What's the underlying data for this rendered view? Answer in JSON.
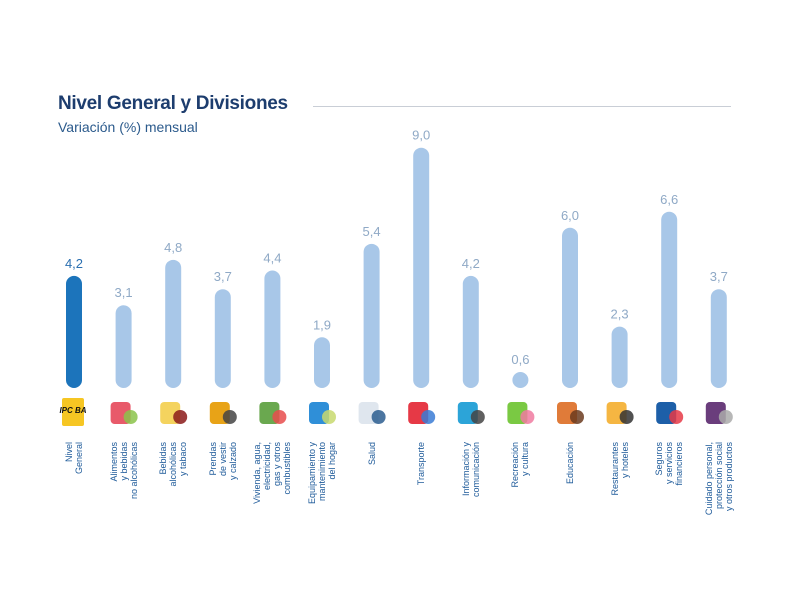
{
  "chart_data": {
    "type": "bar",
    "title": "Nivel General y Divisiones",
    "subtitle": "Variación (%) mensual",
    "xlabel": "",
    "ylabel": "",
    "ylim": [
      0,
      9.5
    ],
    "categories": [
      "Nivel\nGeneral",
      "Alimentos\ny bebidas\nno alcohólicas",
      "Bebidas\nalcohólicas\ny tabaco",
      "Prendas\nde vestir\ny calzado",
      "Vivienda, agua,\nelectricidad,\ngas y otros\ncombustibles",
      "Equipamiento y\nmantenimiento\ndel hogar",
      "Salud",
      "Transporte",
      "Información y\ncomunicación",
      "Recreación\ny cultura",
      "Educación",
      "Restaurantes\ny hoteles",
      "Seguros\ny servicios\nfinancieros",
      "Cuidado personal,\nprotección social\ny otros productos"
    ],
    "values": [
      4.2,
      3.1,
      4.8,
      3.7,
      4.4,
      1.9,
      5.4,
      9.0,
      4.2,
      0.6,
      6.0,
      2.3,
      6.6,
      3.7
    ],
    "value_labels": [
      "4,2",
      "3,1",
      "4,8",
      "3,7",
      "4,4",
      "1,9",
      "5,4",
      "9,0",
      "4,2",
      "0,6",
      "6,0",
      "2,3",
      "6,6",
      "3,7"
    ],
    "icons": [
      "ipc-ba-logo-icon",
      "food-icon",
      "bottles-icon",
      "jacket-icon",
      "house-icon",
      "washing-machine-icon",
      "doctor-icon",
      "car-plane-icon",
      "computer-icon",
      "theater-masks-icon",
      "school-icon",
      "cutlery-icon",
      "bank-icon",
      "personal-care-icon"
    ],
    "icon_logo_text": "IPC BA",
    "colors": {
      "highlight": "#1c74bb",
      "bars": "#a8c7e8",
      "title": "#1d3d6e"
    }
  }
}
